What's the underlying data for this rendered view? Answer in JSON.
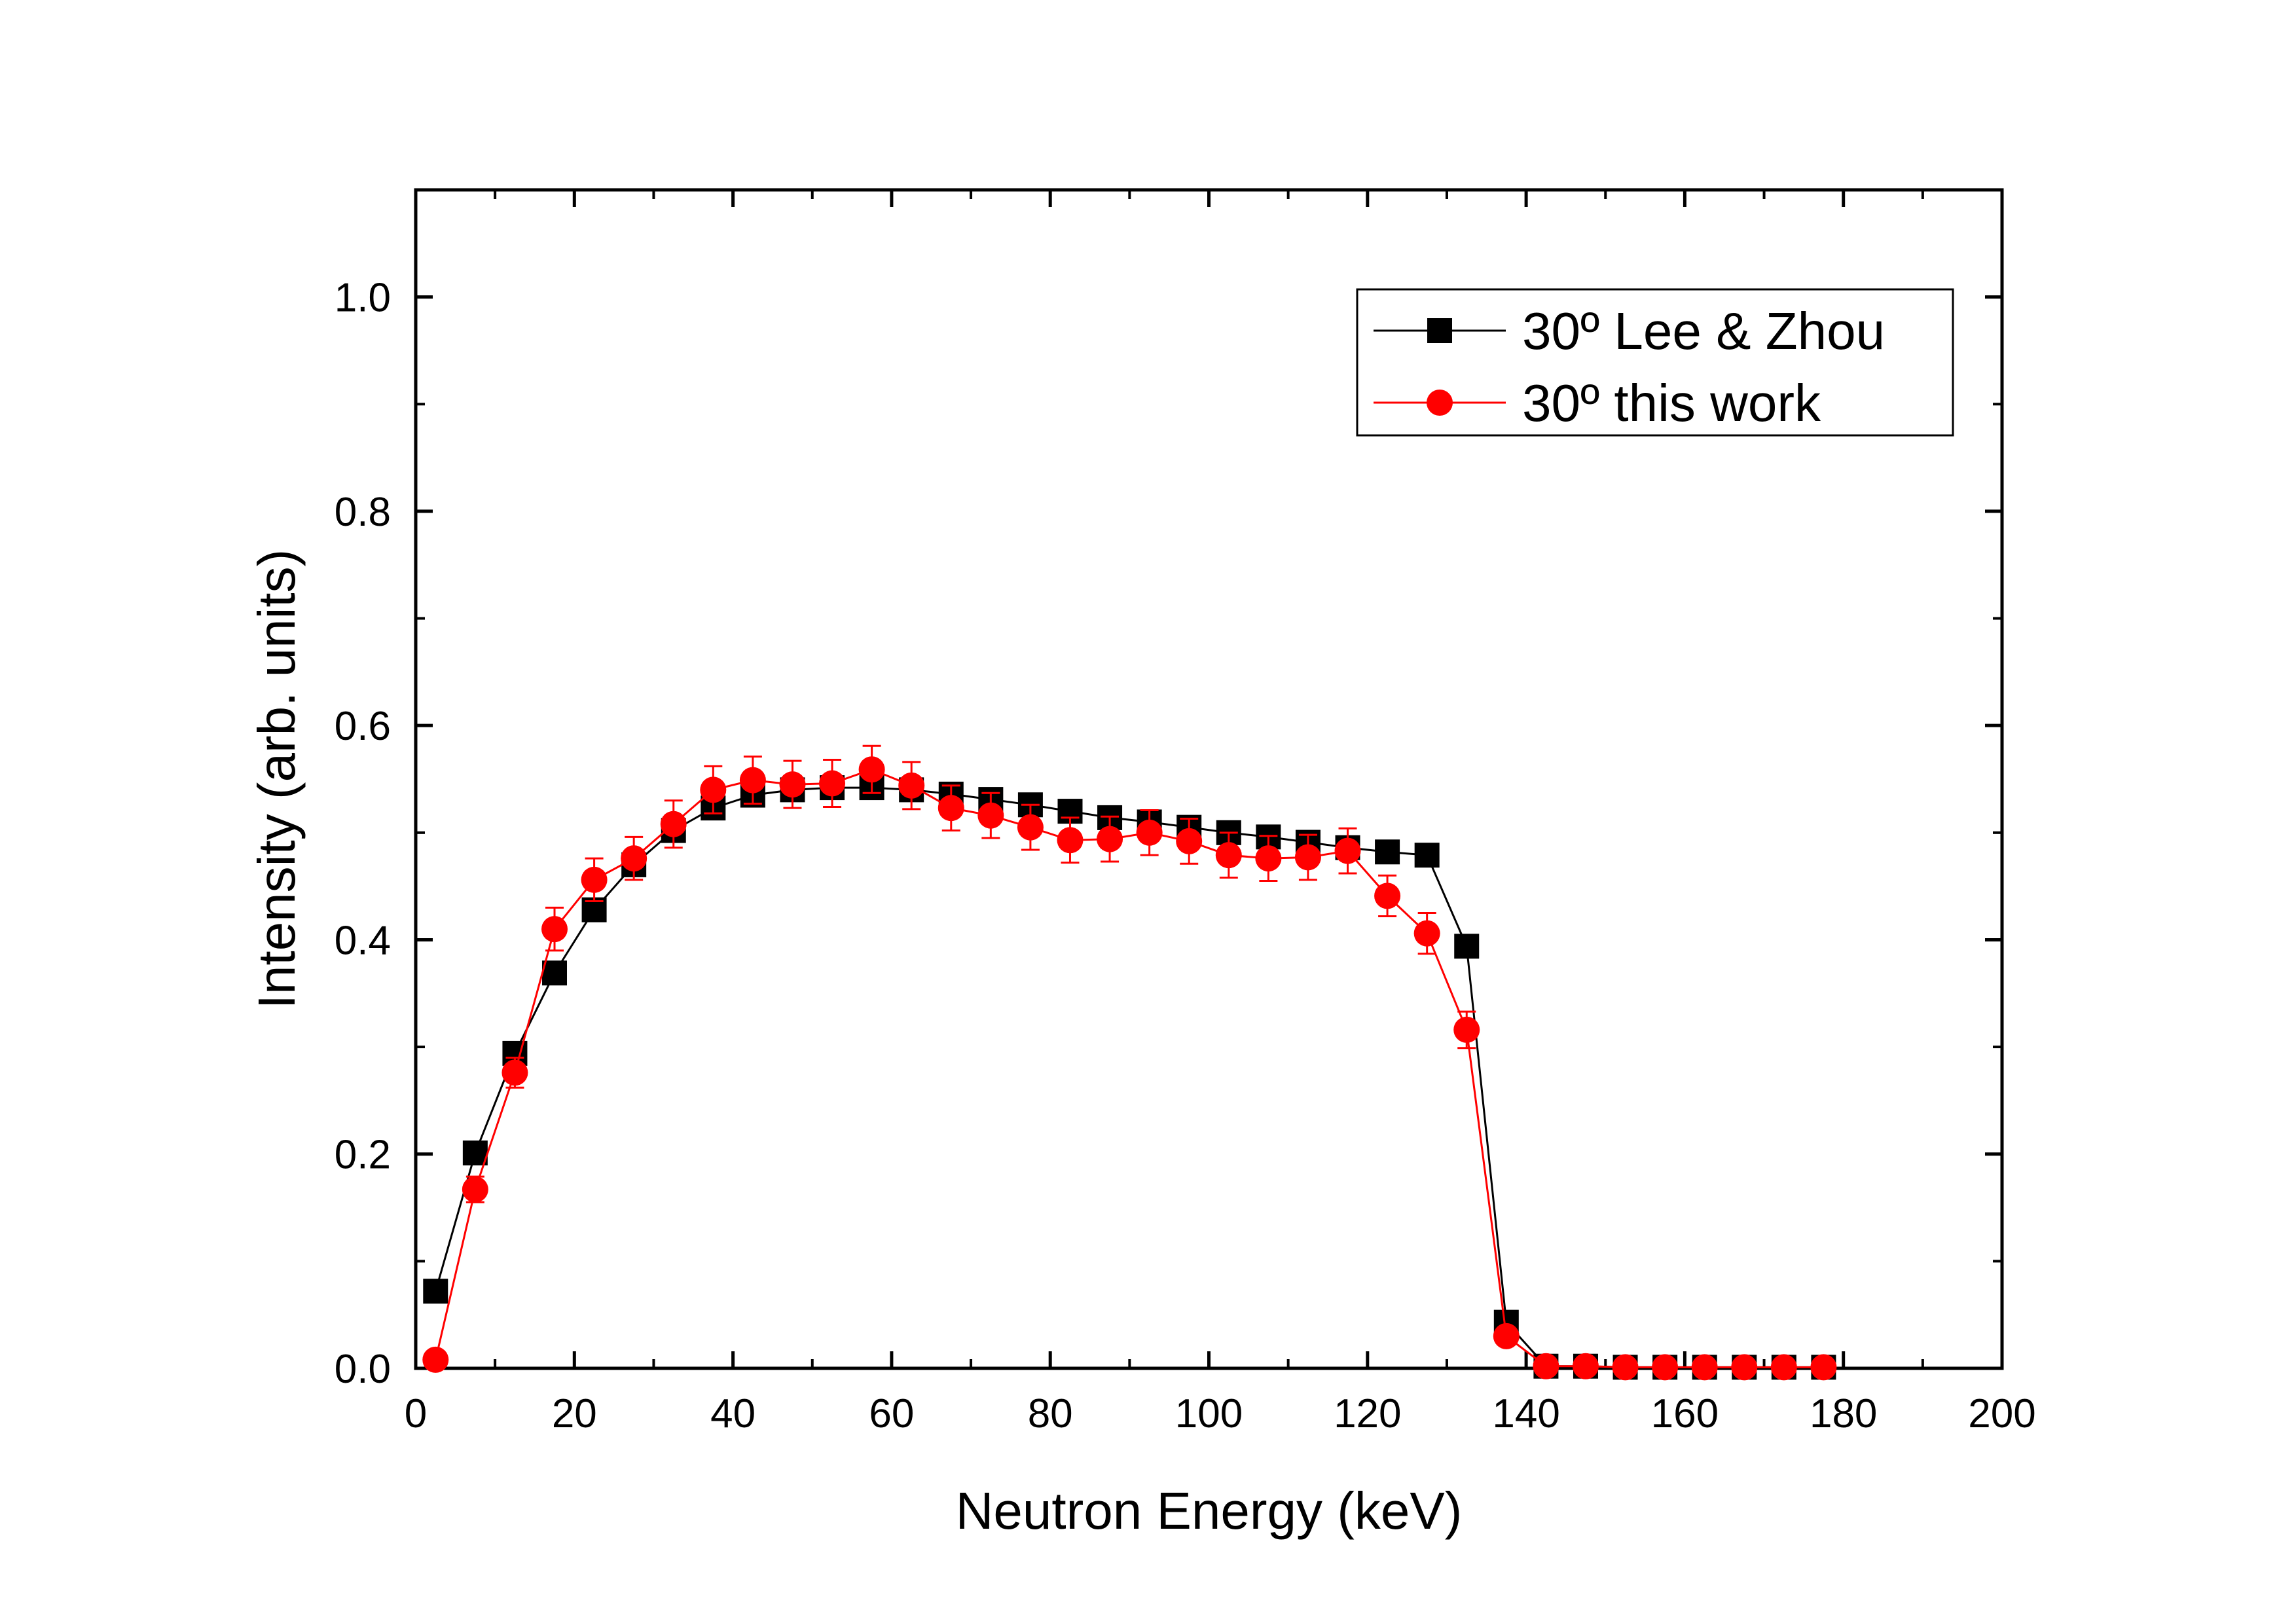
{
  "chart_data": {
    "type": "line",
    "title": "",
    "xlabel": "Neutron Energy (keV)",
    "ylabel": "Intensity (arb. units)",
    "xlim": [
      0,
      200
    ],
    "ylim": [
      0,
      1.1
    ],
    "xticks": [
      0,
      20,
      40,
      60,
      80,
      100,
      120,
      140,
      160,
      180,
      200
    ],
    "xtick_labels": [
      "0",
      "20",
      "40",
      "60",
      "80",
      "100",
      "120",
      "140",
      "160",
      "180",
      "200"
    ],
    "yticks": [
      0.0,
      0.2,
      0.4,
      0.6,
      0.8,
      1.0
    ],
    "ytick_labels": [
      "0.0",
      "0.2",
      "0.4",
      "0.6",
      "0.8",
      "1.0"
    ],
    "grid": false,
    "legend_position": "top-right",
    "series": [
      {
        "name": "30º Lee & Zhou",
        "color": "#000000",
        "marker": "square",
        "x": [
          2.5,
          7.5,
          12.5,
          17.5,
          22.5,
          27.5,
          32.5,
          37.5,
          42.5,
          47.5,
          52.5,
          57.5,
          62.5,
          67.5,
          72.5,
          77.5,
          82.5,
          87.5,
          92.5,
          97.5,
          102.5,
          107.5,
          112.5,
          117.5,
          122.5,
          127.5,
          132.5,
          137.5,
          142.5,
          147.5,
          152.5,
          157.5,
          162.5,
          167.5,
          172.5,
          177.5
        ],
        "y": [
          0.072,
          0.201,
          0.294,
          0.369,
          0.428,
          0.47,
          0.502,
          0.523,
          0.535,
          0.54,
          0.542,
          0.542,
          0.54,
          0.536,
          0.531,
          0.526,
          0.52,
          0.514,
          0.51,
          0.505,
          0.5,
          0.496,
          0.491,
          0.486,
          0.482,
          0.479,
          0.394,
          0.043,
          0.002,
          0.002,
          0.001,
          0.001,
          0.001,
          0.001,
          0.001,
          0.001
        ]
      },
      {
        "name": "30º this work",
        "color": "#ff0000",
        "marker": "circle",
        "x": [
          2.5,
          7.5,
          12.5,
          17.5,
          22.5,
          27.5,
          32.5,
          37.5,
          42.5,
          47.5,
          52.5,
          57.5,
          62.5,
          67.5,
          72.5,
          77.5,
          82.5,
          87.5,
          92.5,
          97.5,
          102.5,
          107.5,
          112.5,
          117.5,
          122.5,
          127.5,
          132.5,
          137.5,
          142.5,
          147.5,
          152.5,
          157.5,
          162.5,
          167.5,
          172.5,
          177.5
        ],
        "y": [
          0.008,
          0.167,
          0.276,
          0.41,
          0.456,
          0.476,
          0.508,
          0.54,
          0.549,
          0.545,
          0.546,
          0.559,
          0.544,
          0.523,
          0.516,
          0.505,
          0.493,
          0.494,
          0.5,
          0.492,
          0.479,
          0.476,
          0.477,
          0.483,
          0.441,
          0.406,
          0.316,
          0.03,
          0.002,
          0.002,
          0.001,
          0.001,
          0.001,
          0.001,
          0.001,
          0.001
        ],
        "yerr": [
          0.004,
          0.012,
          0.014,
          0.02,
          0.02,
          0.02,
          0.022,
          0.022,
          0.022,
          0.022,
          0.022,
          0.022,
          0.022,
          0.021,
          0.021,
          0.021,
          0.021,
          0.021,
          0.021,
          0.021,
          0.021,
          0.021,
          0.021,
          0.021,
          0.019,
          0.019,
          0.017,
          0.004,
          0.001,
          0.001,
          0.001,
          0.001,
          0.001,
          0.001,
          0.001,
          0.001
        ]
      }
    ]
  }
}
